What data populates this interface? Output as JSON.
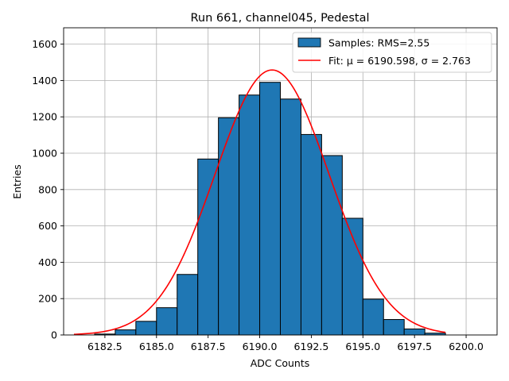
{
  "chart_data": {
    "type": "bar",
    "title": "Run 661, channel045, Pedestal",
    "xlabel": "ADC Counts",
    "ylabel": "Entries",
    "xlim": [
      6180.5,
      6201.5
    ],
    "ylim": [
      0,
      1690
    ],
    "grid": true,
    "legend_position": "top-right",
    "xticks": [
      6182.5,
      6185.0,
      6187.5,
      6190.0,
      6192.5,
      6195.0,
      6197.5,
      6200.0
    ],
    "xtick_labels": [
      "6182.5",
      "6185.0",
      "6187.5",
      "6190.0",
      "6192.5",
      "6195.0",
      "6197.5",
      "6200.0"
    ],
    "yticks": [
      0,
      200,
      400,
      600,
      800,
      1000,
      1200,
      1400,
      1600
    ],
    "ytick_labels": [
      "0",
      "200",
      "400",
      "600",
      "800",
      "1000",
      "1200",
      "1400",
      "1600"
    ],
    "bins": [
      {
        "left": 6182,
        "right": 6183,
        "value": 5
      },
      {
        "left": 6183,
        "right": 6184,
        "value": 28
      },
      {
        "left": 6184,
        "right": 6185,
        "value": 75
      },
      {
        "left": 6185,
        "right": 6186,
        "value": 150
      },
      {
        "left": 6186,
        "right": 6187,
        "value": 333
      },
      {
        "left": 6187,
        "right": 6188,
        "value": 968
      },
      {
        "left": 6188,
        "right": 6189,
        "value": 1195
      },
      {
        "left": 6189,
        "right": 6190,
        "value": 1320
      },
      {
        "left": 6190,
        "right": 6191,
        "value": 1390
      },
      {
        "left": 6191,
        "right": 6192,
        "value": 1298
      },
      {
        "left": 6192,
        "right": 6193,
        "value": 1103
      },
      {
        "left": 6193,
        "right": 6194,
        "value": 987
      },
      {
        "left": 6194,
        "right": 6195,
        "value": 642
      },
      {
        "left": 6195,
        "right": 6196,
        "value": 197
      },
      {
        "left": 6196,
        "right": 6197,
        "value": 85
      },
      {
        "left": 6197,
        "right": 6198,
        "value": 33
      },
      {
        "left": 6198,
        "right": 6199,
        "value": 10
      }
    ],
    "fit": {
      "mu": 6190.598,
      "sigma": 2.763,
      "amplitude": 1458,
      "x_range": [
        6181,
        6199
      ]
    },
    "series": [
      {
        "name": "Samples: RMS=2.55",
        "kind": "histogram",
        "color": "#1f77b4"
      },
      {
        "name": "Fit: μ = 6190.598, σ = 2.763",
        "kind": "line",
        "color": "#ff0000"
      }
    ]
  }
}
